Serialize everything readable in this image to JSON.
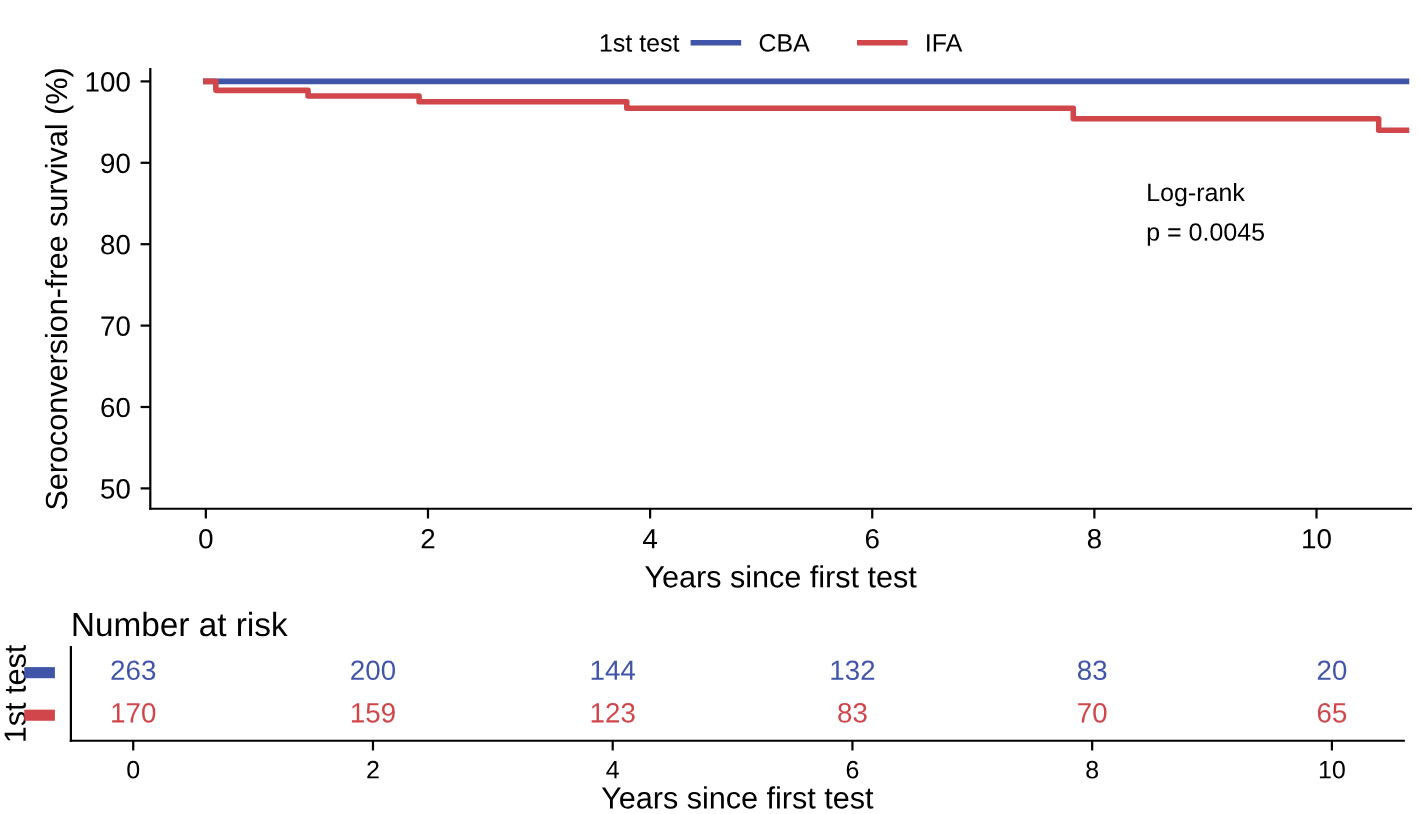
{
  "chart_data": [
    {
      "type": "step",
      "ylabel": "Seroconversion-free survival (%)",
      "xlabel": "Years since first test",
      "legend_title": "1st test",
      "legend": "top",
      "series": [
        {
          "name": "CBA",
          "color": "#4055a8",
          "x": [
            0,
            10.81
          ],
          "values": [
            100,
            100
          ]
        },
        {
          "name": "IFA",
          "color": "#d0464a",
          "x": [
            0,
            0.09,
            0.92,
            1.92,
            3.79,
            7.81,
            10.56,
            10.81
          ],
          "values": [
            100,
            98.9,
            98.2,
            97.5,
            96.7,
            95.4,
            94.0,
            94.0
          ]
        }
      ],
      "xlim": [
        -0.5,
        10.85
      ],
      "xticks": [
        0,
        2,
        4,
        6,
        8,
        10
      ],
      "ylim": [
        47.5,
        101.5
      ],
      "yticks": [
        50,
        60,
        70,
        80,
        90,
        100
      ],
      "grid": false,
      "annotations": [
        "Log-rank",
        "p = 0.0045"
      ]
    },
    {
      "type": "heatmap",
      "title": "Number at risk",
      "ylabel": "1st test",
      "xlabel": "Years since first test",
      "data_labels": true,
      "categories": [
        "0",
        "2",
        "4",
        "6",
        "8",
        "10"
      ],
      "y_categories": [
        null,
        null
      ],
      "colors": [
        "#4055a8",
        "#d0464a"
      ],
      "cells": [
        [
          263,
          200,
          144,
          132,
          83,
          20
        ],
        [
          170,
          159,
          123,
          83,
          70,
          65
        ]
      ]
    }
  ]
}
